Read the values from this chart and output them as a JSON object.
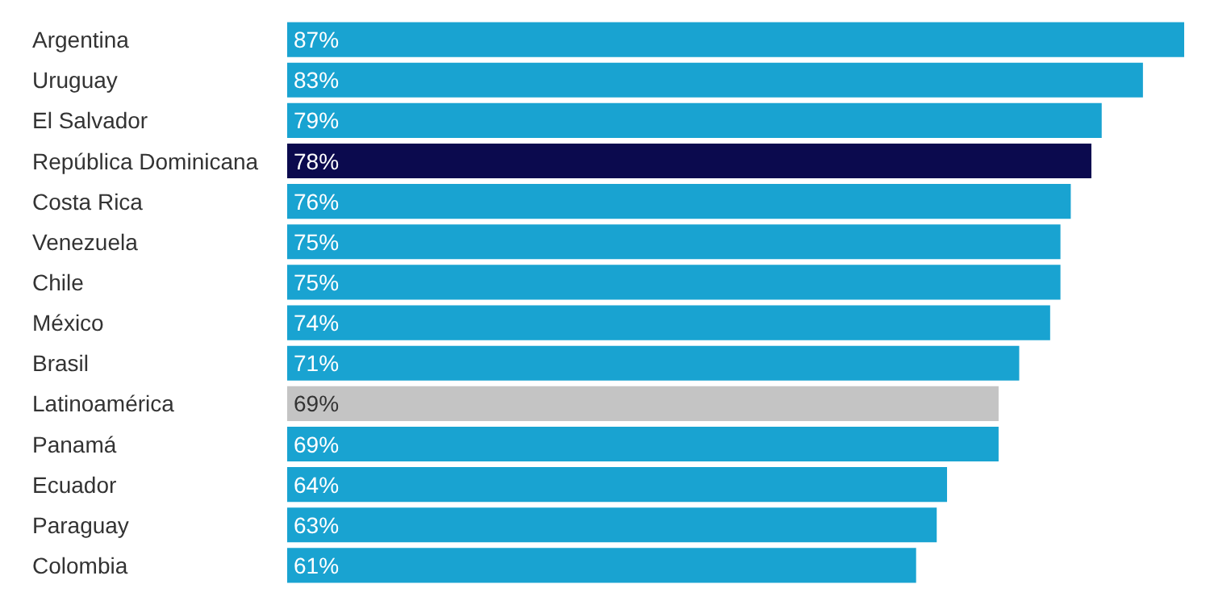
{
  "chart_data": {
    "type": "bar",
    "orientation": "horizontal",
    "categories": [
      "Argentina",
      "Uruguay",
      "El Salvador",
      "República Dominicana",
      "Costa Rica",
      "Venezuela",
      "Chile",
      "México",
      "Brasil",
      "Latinoamérica",
      "Panamá",
      "Ecuador",
      "Paraguay",
      "Colombia"
    ],
    "values": [
      87,
      83,
      79,
      78,
      76,
      75,
      75,
      74,
      71,
      69,
      69,
      64,
      63,
      61
    ],
    "value_labels": [
      "87%",
      "83%",
      "79%",
      "78%",
      "76%",
      "75%",
      "75%",
      "74%",
      "71%",
      "69%",
      "69%",
      "64%",
      "63%",
      "61%"
    ],
    "colors": [
      "#19a3d1",
      "#19a3d1",
      "#19a3d1",
      "#0b0a4e",
      "#19a3d1",
      "#19a3d1",
      "#19a3d1",
      "#19a3d1",
      "#19a3d1",
      "#c4c4c4",
      "#19a3d1",
      "#19a3d1",
      "#19a3d1",
      "#19a3d1"
    ]
  }
}
